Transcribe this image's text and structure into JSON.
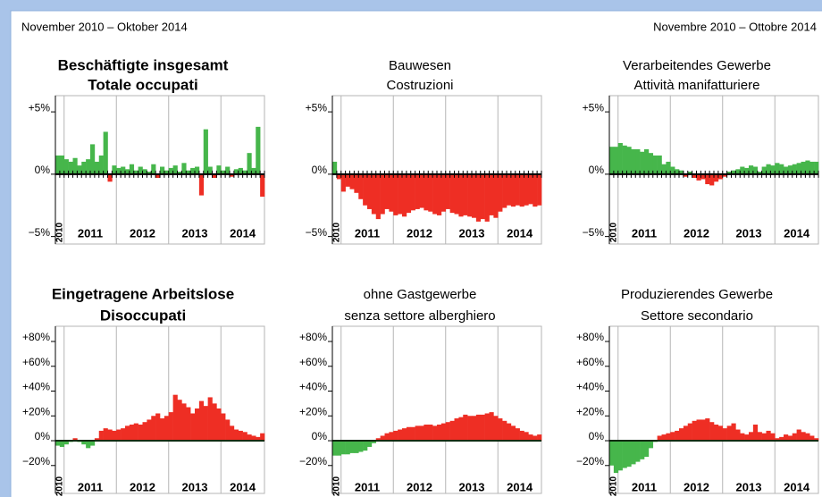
{
  "header": {
    "left": "November 2010 – Oktober 2014",
    "right": "Novembre 2010 – Ottobre 2014"
  },
  "chart_data": [
    {
      "type": "bar",
      "title": "Beschäftigte insgesamt",
      "subtitle": "Totale occupati",
      "title_bold": true,
      "year_labels": [
        "2010",
        "2011",
        "2012",
        "2013",
        "2014"
      ],
      "values": [
        1.5,
        1.5,
        1.2,
        1.0,
        1.3,
        0.7,
        1.0,
        1.2,
        2.4,
        1.0,
        1.5,
        3.4,
        -0.6,
        0.7,
        0.5,
        0.6,
        0.4,
        0.8,
        0.3,
        0.6,
        0.4,
        0.2,
        0.8,
        -0.3,
        0.6,
        0.3,
        0.5,
        0.7,
        0.2,
        0.9,
        0.3,
        0.5,
        0.6,
        -1.7,
        3.6,
        0.6,
        -0.3,
        0.7,
        0.3,
        0.6,
        -0.2,
        0.4,
        0.5,
        0.3,
        1.7,
        0.5,
        3.8,
        -1.8
      ],
      "positive_color": "#46b64b",
      "negative_color": "#ee2e24",
      "ylim": [
        -5.6,
        6.3
      ],
      "yticks": [
        {
          "value": 5,
          "label": "+5%"
        },
        {
          "value": 0,
          "label": "0%"
        },
        {
          "value": -5,
          "label": "−5%"
        }
      ]
    },
    {
      "type": "bar",
      "title": "Bauwesen",
      "subtitle": "Costruzioni",
      "title_bold": false,
      "year_labels": [
        "2010",
        "2011",
        "2012",
        "2013",
        "2014"
      ],
      "values": [
        1.0,
        -0.4,
        -1.4,
        -1.0,
        -1.2,
        -1.5,
        -2.0,
        -2.5,
        -2.8,
        -3.2,
        -3.6,
        -3.2,
        -2.8,
        -3.0,
        -3.3,
        -3.2,
        -3.4,
        -3.1,
        -2.9,
        -2.8,
        -2.7,
        -2.9,
        -3.0,
        -3.2,
        -3.3,
        -3.0,
        -2.8,
        -3.1,
        -3.2,
        -3.4,
        -3.3,
        -3.4,
        -3.5,
        -3.8,
        -3.6,
        -3.8,
        -3.3,
        -3.5,
        -3.0,
        -2.7,
        -2.5,
        -2.6,
        -2.5,
        -2.6,
        -2.5,
        -2.4,
        -2.6,
        -2.5
      ],
      "positive_color": "#46b64b",
      "negative_color": "#ee2e24",
      "ylim": [
        -5.6,
        6.3
      ],
      "yticks": [
        {
          "value": 5,
          "label": "+5%"
        },
        {
          "value": 0,
          "label": "0%"
        },
        {
          "value": -5,
          "label": "−5%"
        }
      ]
    },
    {
      "type": "bar",
      "title": "Verarbeitendes Gewerbe",
      "subtitle": "Attività manifatturiere",
      "title_bold": false,
      "year_labels": [
        "2010",
        "2011",
        "2012",
        "2013",
        "2014"
      ],
      "values": [
        2.2,
        2.2,
        2.5,
        2.3,
        2.2,
        2.0,
        2.0,
        1.8,
        2.0,
        1.7,
        1.5,
        1.5,
        0.8,
        1.0,
        0.6,
        0.4,
        0.3,
        -0.2,
        0.2,
        -0.3,
        -0.5,
        -0.4,
        -0.8,
        -0.9,
        -0.6,
        -0.4,
        -0.2,
        0.2,
        0.3,
        0.4,
        0.6,
        0.5,
        0.7,
        0.6,
        0.2,
        0.6,
        0.8,
        0.7,
        0.9,
        0.8,
        0.6,
        0.7,
        0.8,
        0.9,
        1.0,
        1.1,
        1.0,
        1.0
      ],
      "positive_color": "#46b64b",
      "negative_color": "#ee2e24",
      "ylim": [
        -5.6,
        6.3
      ],
      "yticks": [
        {
          "value": 5,
          "label": "+5%"
        },
        {
          "value": 0,
          "label": "0%"
        },
        {
          "value": -5,
          "label": "−5%"
        }
      ]
    },
    {
      "type": "bar",
      "title": "Eingetragene Arbeitslose",
      "subtitle": "Disoccupati",
      "title_bold": true,
      "year_labels": [
        "2010",
        "2011",
        "2012",
        "2013",
        "2014"
      ],
      "values": [
        -4,
        -5,
        -3,
        -1,
        2,
        -1,
        -3,
        -6,
        -4,
        2,
        8,
        10,
        9,
        8,
        9,
        10,
        12,
        13,
        14,
        13,
        15,
        17,
        20,
        22,
        18,
        20,
        23,
        37,
        33,
        30,
        27,
        22,
        26,
        32,
        28,
        35,
        30,
        26,
        22,
        17,
        12,
        9,
        8,
        7,
        5,
        4,
        3,
        6
      ],
      "positive_color": "#ee2e24",
      "negative_color": "#46b64b",
      "ylim": [
        -42.5,
        92.25
      ],
      "yticks": [
        {
          "value": 80,
          "label": "+80%"
        },
        {
          "value": 60,
          "label": "+60%"
        },
        {
          "value": 40,
          "label": "+40%"
        },
        {
          "value": 20,
          "label": "+20%"
        },
        {
          "value": 0,
          "label": "0%"
        },
        {
          "value": -20,
          "label": "−20%"
        }
      ]
    },
    {
      "type": "bar",
      "title": "ohne Gastgewerbe",
      "subtitle": "senza settore alberghiero",
      "title_bold": false,
      "year_labels": [
        "2010",
        "2011",
        "2012",
        "2013",
        "2014"
      ],
      "values": [
        -12,
        -12,
        -11,
        -11,
        -10,
        -10,
        -9,
        -8,
        -5,
        -2,
        2,
        4,
        6,
        7,
        8,
        9,
        10,
        11,
        11,
        12,
        12,
        13,
        13,
        12,
        13,
        14,
        15,
        16,
        18,
        19,
        21,
        20,
        20,
        21,
        21,
        22,
        23,
        20,
        18,
        16,
        14,
        12,
        10,
        8,
        7,
        5,
        4,
        5
      ],
      "positive_color": "#ee2e24",
      "negative_color": "#46b64b",
      "ylim": [
        -42.5,
        92.25
      ],
      "yticks": [
        {
          "value": 80,
          "label": "+80%"
        },
        {
          "value": 60,
          "label": "+60%"
        },
        {
          "value": 40,
          "label": "+40%"
        },
        {
          "value": 20,
          "label": "+20%"
        },
        {
          "value": 0,
          "label": "0%"
        },
        {
          "value": -20,
          "label": "−20%"
        }
      ]
    },
    {
      "type": "bar",
      "title": "Produzierendes Gewerbe",
      "subtitle": "Settore secondario",
      "title_bold": false,
      "year_labels": [
        "2010",
        "2011",
        "2012",
        "2013",
        "2014"
      ],
      "values": [
        -20,
        -26,
        -24,
        -22,
        -21,
        -19,
        -17,
        -15,
        -13,
        -6,
        -1,
        4,
        5,
        6,
        7,
        8,
        10,
        12,
        14,
        16,
        17,
        17,
        18,
        15,
        13,
        12,
        10,
        12,
        14,
        9,
        6,
        5,
        7,
        13,
        7,
        6,
        8,
        6,
        2,
        3,
        5,
        4,
        6,
        9,
        7,
        6,
        4,
        2
      ],
      "positive_color": "#ee2e24",
      "negative_color": "#46b64b",
      "ylim": [
        -42.5,
        92.25
      ],
      "yticks": [
        {
          "value": 80,
          "label": "+80%"
        },
        {
          "value": 60,
          "label": "+60%"
        },
        {
          "value": 40,
          "label": "+40%"
        },
        {
          "value": 20,
          "label": "+20%"
        },
        {
          "value": 0,
          "label": "0%"
        },
        {
          "value": -20,
          "label": "−20%"
        }
      ]
    }
  ]
}
